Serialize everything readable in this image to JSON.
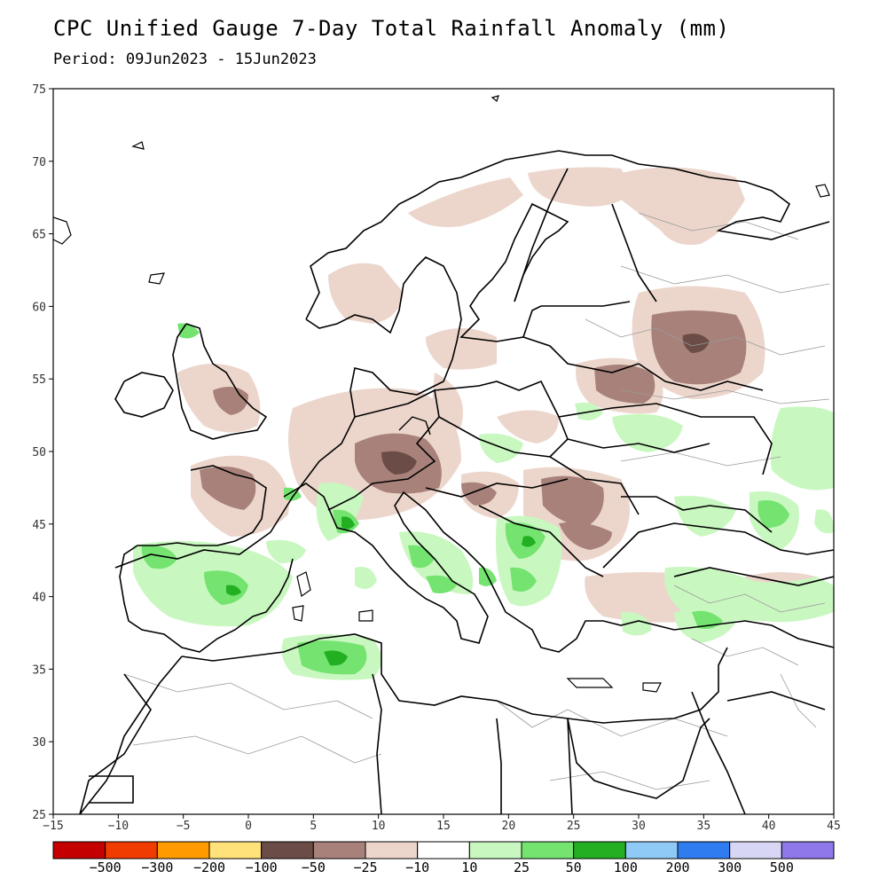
{
  "title": "CPC Unified Gauge 7-Day Total Rainfall Anomaly (mm)",
  "subtitle": "Period: 09Jun2023 - 15Jun2023",
  "map": {
    "lon_range": [
      -15,
      45
    ],
    "lat_range": [
      25,
      75
    ],
    "x_ticks": [
      "−15",
      "−10",
      "−5",
      "0",
      "5",
      "10",
      "15",
      "20",
      "25",
      "30",
      "35",
      "40",
      "45"
    ],
    "y_ticks": [
      "75",
      "70",
      "65",
      "60",
      "55",
      "50",
      "45",
      "40",
      "35",
      "30",
      "25"
    ],
    "coastline_color": "#000000",
    "border_color": "#000000",
    "admin_border_color": "#9a9a9a"
  },
  "legend": {
    "colors": [
      "#c40000",
      "#f03c00",
      "#ff9a00",
      "#ffe27a",
      "#6b4c46",
      "#a8827a",
      "#ecd6cc",
      "#ffffff",
      "#c9f7c0",
      "#74e370",
      "#22b022",
      "#8fcaf6",
      "#2f7cf0",
      "#d7d7f5",
      "#8e78ea"
    ],
    "labels": [
      "−500",
      "−300",
      "−200",
      "−100",
      "−50",
      "−25",
      "−10",
      "10",
      "25",
      "50",
      "100",
      "200",
      "300",
      "500"
    ]
  },
  "anomaly_classes": {
    "light_brown": "#ecd6cc",
    "mid_brown": "#a8827a",
    "dark_brown": "#6b4c46",
    "light_green": "#c9f7c0",
    "mid_green": "#74e370",
    "dark_green": "#22b022"
  }
}
